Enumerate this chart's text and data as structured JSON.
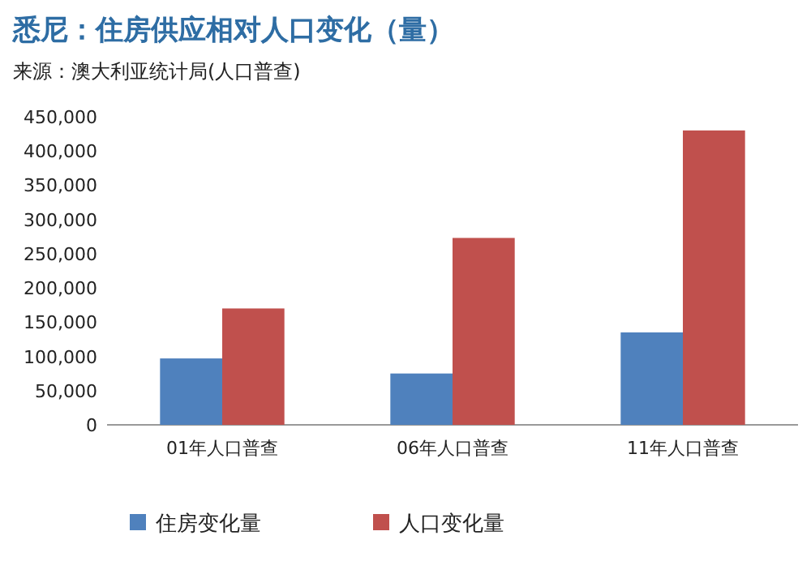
{
  "chart_data": {
    "type": "bar",
    "title": "悉尼：住房供应相对人口变化（量）",
    "subtitle": "来源：澳大利亚统计局(人口普查)",
    "categories": [
      "01年人口普查",
      "06年人口普查",
      "11年人口普查"
    ],
    "series": [
      {
        "name": "住房变化量",
        "color": "#4f81bd",
        "values": [
          97000,
          75000,
          135000
        ]
      },
      {
        "name": "人口变化量",
        "color": "#c0504d",
        "values": [
          170000,
          273000,
          430000
        ]
      }
    ],
    "ylim": [
      0,
      450000
    ],
    "yticks": [
      {
        "value": 0,
        "label": "0"
      },
      {
        "value": 50000,
        "label": "50,000"
      },
      {
        "value": 100000,
        "label": "100,000"
      },
      {
        "value": 150000,
        "label": "150,000"
      },
      {
        "value": 200000,
        "label": "200,000"
      },
      {
        "value": 250000,
        "label": "250,000"
      },
      {
        "value": 300000,
        "label": "300,000"
      },
      {
        "value": 350000,
        "label": "350,000"
      },
      {
        "value": 400000,
        "label": "400,000"
      },
      {
        "value": 450000,
        "label": "450,000"
      }
    ],
    "grid": false,
    "legend": "bottom"
  }
}
